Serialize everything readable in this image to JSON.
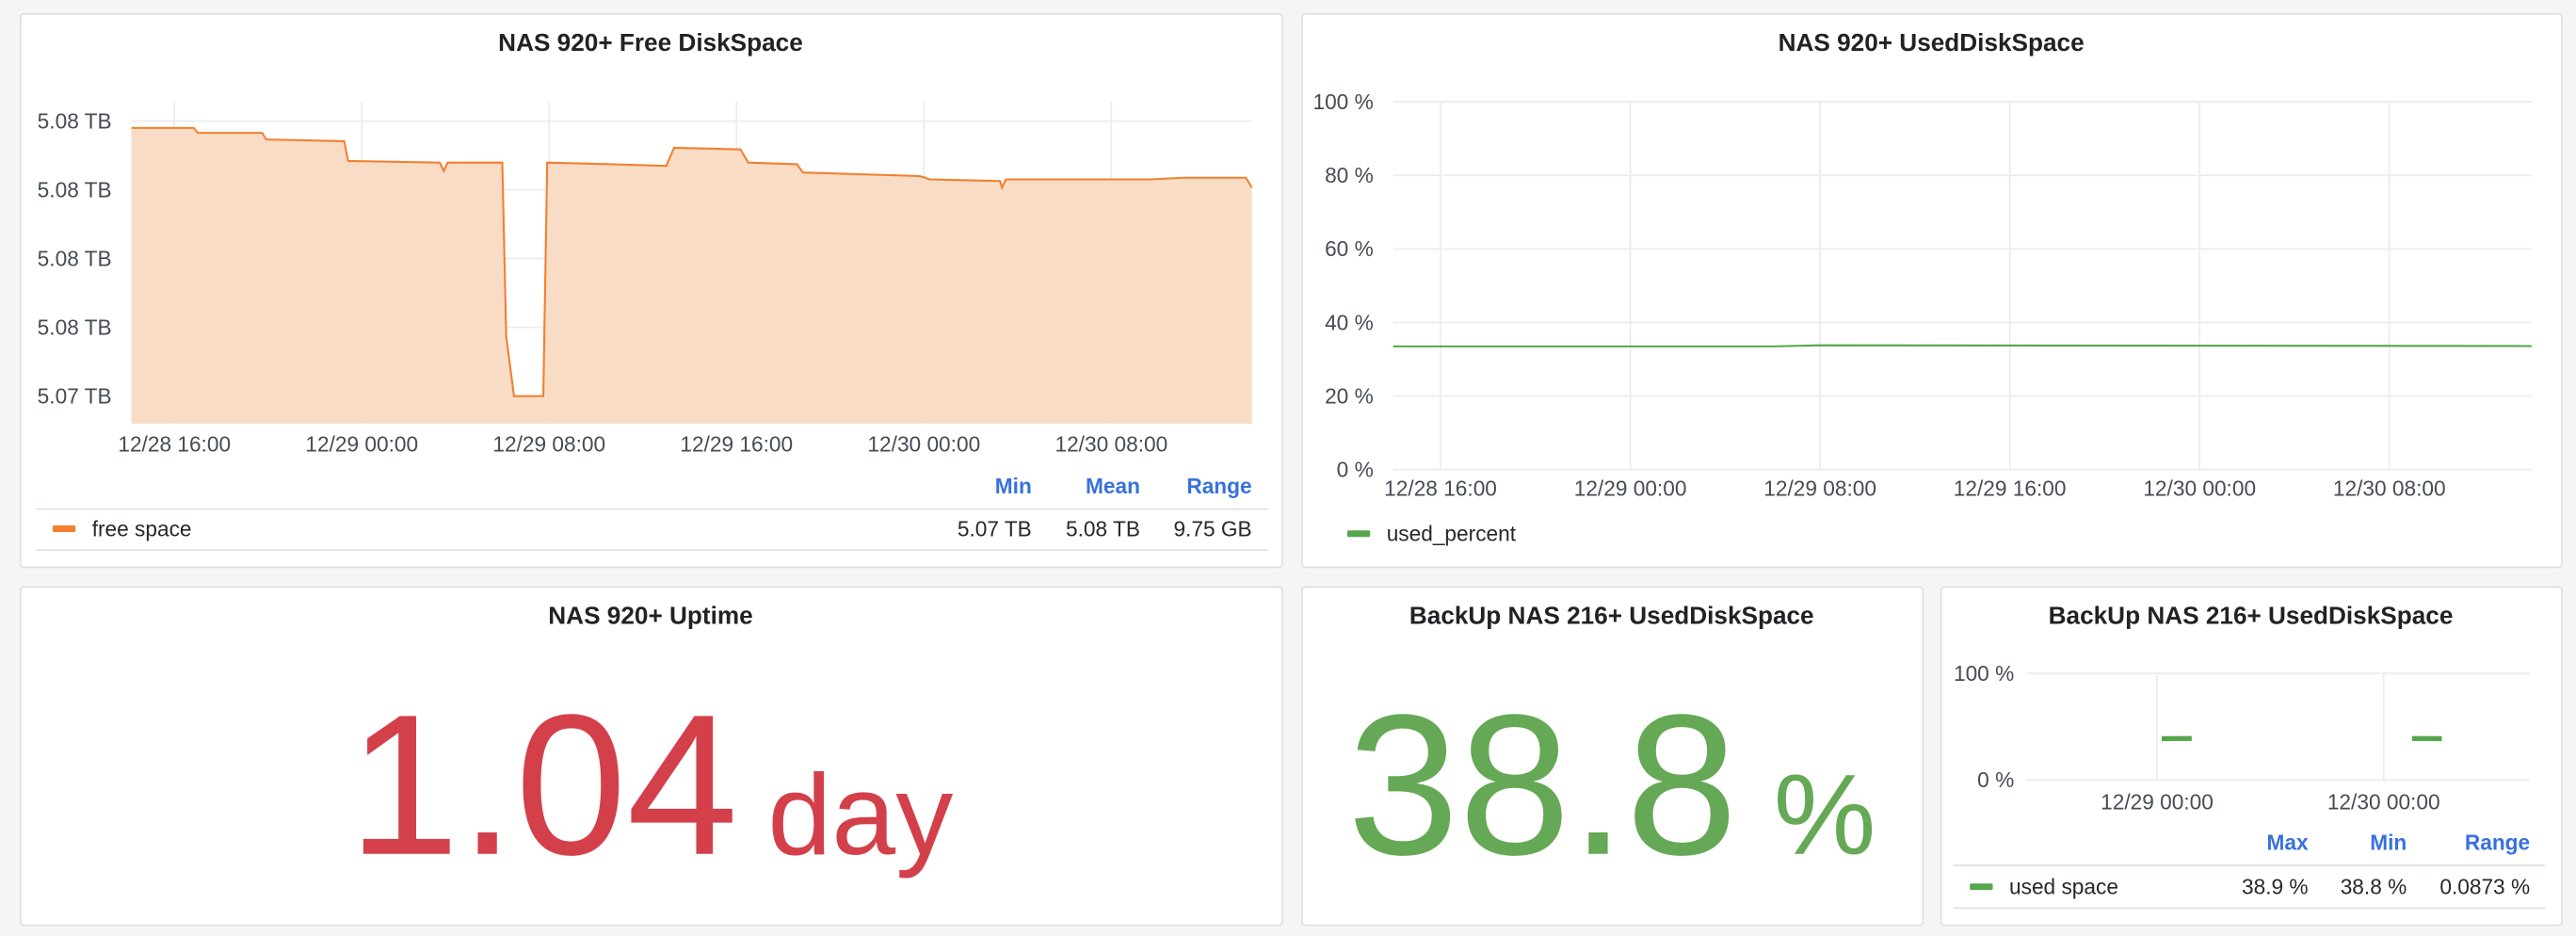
{
  "chart_data": [
    {
      "type": "line",
      "title": "NAS 920+ Free DiskSpace",
      "x": [
        "12/28 14:10",
        "12/28 16:50",
        "12/28 17:00",
        "12/28 19:45",
        "12/28 19:55",
        "12/28 23:15",
        "12/28 23:25",
        "12/29 03:20",
        "12/29 03:30",
        "12/29 03:40",
        "12/29 06:00",
        "12/29 06:10",
        "12/29 06:30",
        "12/29 07:45",
        "12/29 07:55",
        "12/29 10:40",
        "12/29 13:00",
        "12/29 13:20",
        "12/29 16:10",
        "12/29 16:30",
        "12/29 18:35",
        "12/29 18:50",
        "12/29 23:50",
        "12/30 00:15",
        "12/30 03:15",
        "12/30 03:20",
        "12/30 03:30",
        "12/30 09:40",
        "12/30 11:05",
        "12/30 13:45",
        "12/30 14:00"
      ],
      "series": [
        {
          "name": "free space",
          "color": "#f2802f",
          "fill": "#f9dcc6",
          "values": [
            5.08225,
            5.08225,
            5.08207,
            5.08207,
            5.08183,
            5.08177,
            5.08105,
            5.08099,
            5.08069,
            5.08099,
            5.08099,
            5.07467,
            5.0725,
            5.0725,
            5.08099,
            5.08093,
            5.08087,
            5.08153,
            5.08147,
            5.08099,
            5.08093,
            5.08063,
            5.0805,
            5.08038,
            5.08032,
            5.08008,
            5.08038,
            5.08038,
            5.08044,
            5.08044,
            5.08008
          ]
        }
      ],
      "xlim": [
        "12/28 14:10",
        "12/30 14:00"
      ],
      "xticks": [
        "12/28 16:00",
        "12/29 00:00",
        "12/29 08:00",
        "12/29 16:00",
        "12/30 00:00",
        "12/30 08:00"
      ],
      "ylim": [
        5.0715,
        5.0832
      ],
      "yticks": [
        {
          "value": 5.0725,
          "label": "5.07 TB"
        },
        {
          "value": 5.075,
          "label": "5.08 TB"
        },
        {
          "value": 5.0775,
          "label": "5.08 TB"
        },
        {
          "value": 5.08,
          "label": "5.08 TB"
        },
        {
          "value": 5.0825,
          "label": "5.08 TB"
        }
      ],
      "grid": true,
      "legend": {
        "columns": [
          "Min",
          "Mean",
          "Range"
        ],
        "stats": [
          [
            "5.07 TB",
            "5.08 TB",
            "9.75 GB"
          ]
        ]
      }
    },
    {
      "type": "line",
      "title": "NAS 920+ UsedDiskSpace",
      "x": [
        "12/28 14:00",
        "12/29 06:00",
        "12/29 08:00",
        "12/30 14:00"
      ],
      "series": [
        {
          "name": "used_percent",
          "color": "#56a64b",
          "values": [
            33.5,
            33.5,
            33.8,
            33.6
          ]
        }
      ],
      "xlim": [
        "12/28 14:00",
        "12/30 14:00"
      ],
      "xticks": [
        "12/28 16:00",
        "12/29 00:00",
        "12/29 08:00",
        "12/29 16:00",
        "12/30 00:00",
        "12/30 08:00"
      ],
      "ylim": [
        0,
        100
      ],
      "yticks": [
        {
          "value": 0,
          "label": "0 %"
        },
        {
          "value": 20,
          "label": "20 %"
        },
        {
          "value": 40,
          "label": "40 %"
        },
        {
          "value": 60,
          "label": "60 %"
        },
        {
          "value": 80,
          "label": "80 %"
        },
        {
          "value": 100,
          "label": "100 %"
        }
      ],
      "grid": true,
      "legend": {}
    },
    {
      "type": "stat",
      "title": "NAS 920+ Uptime",
      "value": 1.04,
      "unit": "day",
      "color": "#d3404a"
    },
    {
      "type": "stat",
      "title": "BackUp NAS 216+ UsedDiskSpace",
      "value": 38.8,
      "unit": "%",
      "color": "#65a855"
    },
    {
      "type": "line",
      "title": "BackUp NAS 216+ UsedDiskSpace",
      "x": [
        "12/29 00:30",
        "12/29 03:40",
        "12/29 12:00",
        "12/30 03:00",
        "12/30 06:10"
      ],
      "series": [
        {
          "name": "used space",
          "color": "#56a64b",
          "values": [
            38.8,
            38.9,
            null,
            38.9,
            38.8
          ]
        }
      ],
      "xlim": [
        "12/28 10:05",
        "12/30 15:30"
      ],
      "xticks": [
        "12/29 00:00",
        "12/30 00:00"
      ],
      "ylim": [
        0,
        100
      ],
      "yticks": [
        {
          "value": 0,
          "label": "0 %"
        },
        {
          "value": 100,
          "label": "100 %"
        }
      ],
      "grid": true,
      "legend": {
        "columns": [
          "Max",
          "Min",
          "Range"
        ],
        "stats": [
          [
            "38.9 %",
            "38.8 %",
            "0.0873 %"
          ]
        ]
      }
    }
  ]
}
